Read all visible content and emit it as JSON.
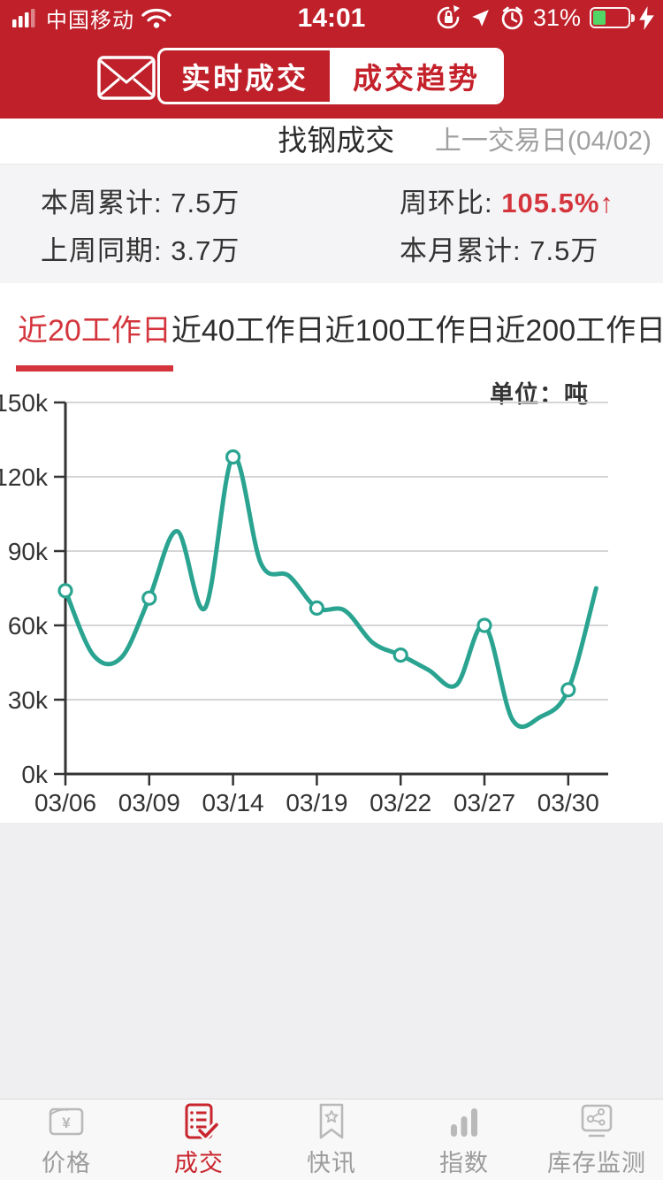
{
  "status_bar": {
    "carrier": "中国移动",
    "time": "14:01",
    "battery": "31%"
  },
  "header": {
    "tabs": [
      {
        "label": "实时成交",
        "selected": false
      },
      {
        "label": "成交趋势",
        "selected": true
      }
    ]
  },
  "title_bar": {
    "title": "找钢成交",
    "prev_day_label": "上一交易日(04/02)"
  },
  "stats": {
    "week_total": {
      "label": "本周累计:",
      "value": "7.5万"
    },
    "week_on_week": {
      "label": "周环比:",
      "value": "105.5%",
      "arrow": "↑"
    },
    "last_week": {
      "label": "上周同期:",
      "value": "3.7万"
    },
    "month_total": {
      "label": "本月累计:",
      "value": "7.5万"
    }
  },
  "period_tabs": [
    {
      "label": "近20工作日",
      "selected": true
    },
    {
      "label": "近40工作日",
      "selected": false
    },
    {
      "label": "近100工作日",
      "selected": false
    },
    {
      "label": "近200工作日",
      "selected": false
    }
  ],
  "chart_data": {
    "type": "line",
    "unit_label": "单位：吨",
    "x": [
      "03/06",
      "03/07",
      "03/08",
      "03/09",
      "03/12",
      "03/13",
      "03/14",
      "03/15",
      "03/16",
      "03/19",
      "03/20",
      "03/21",
      "03/22",
      "03/23",
      "03/26",
      "03/27",
      "03/28",
      "03/29",
      "03/30",
      "04/02"
    ],
    "values": [
      74000,
      48000,
      47000,
      71000,
      98000,
      67000,
      128000,
      85000,
      80000,
      67000,
      66000,
      53000,
      48000,
      42000,
      36000,
      60000,
      22000,
      23000,
      34000,
      75000
    ],
    "x_tick_labels": [
      "03/06",
      "03/09",
      "03/14",
      "03/19",
      "03/22",
      "03/27",
      "03/30"
    ],
    "y_tick_labels": [
      "150k",
      "120k",
      "90k",
      "60k",
      "30k",
      "0k"
    ],
    "ylim": [
      0,
      150000
    ],
    "marker_every": 3,
    "grid": true,
    "legend_position": "none",
    "line_color": "#2aa491"
  },
  "tab_bar": {
    "items": [
      {
        "label": "价格",
        "selected": false
      },
      {
        "label": "成交",
        "selected": true
      },
      {
        "label": "快讯",
        "selected": false
      },
      {
        "label": "指数",
        "selected": false
      },
      {
        "label": "库存监测",
        "selected": false
      }
    ]
  },
  "colors": {
    "header_red": "#bf202a",
    "accent_red": "#d4353c",
    "segment_red": "#c4212b",
    "chart_teal": "#2aa491",
    "battery_green": "#52d766"
  }
}
